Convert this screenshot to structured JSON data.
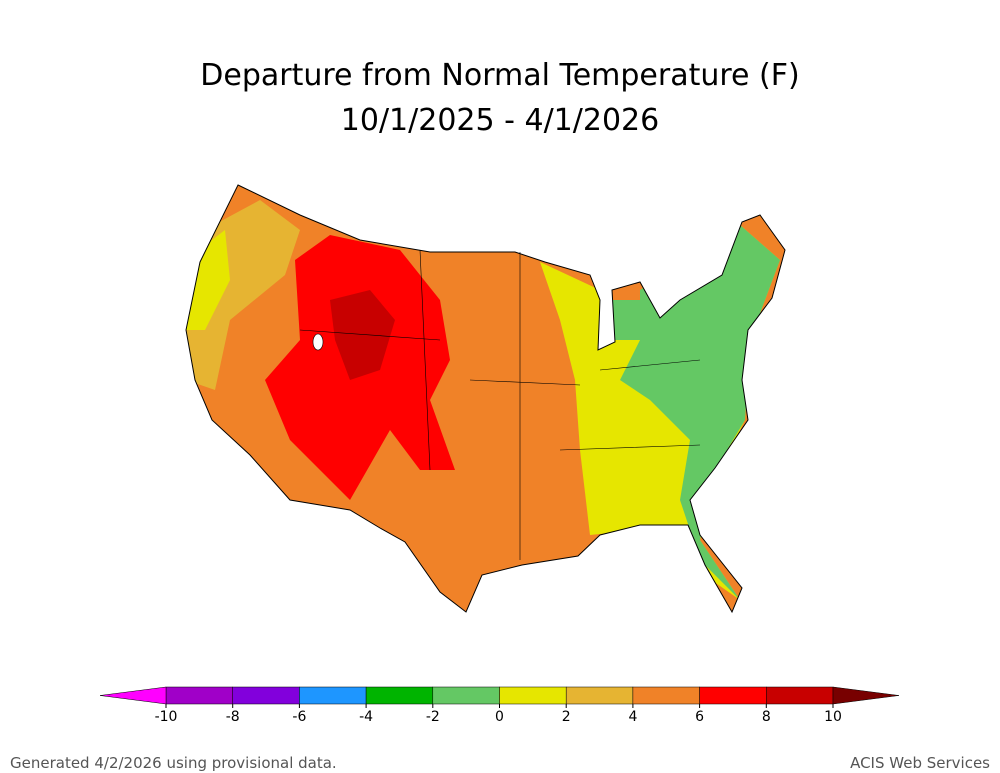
{
  "title": "Departure from Normal Temperature (F)",
  "subtitle": "10/1/2025 - 4/1/2026",
  "colorbar": {
    "ticks": [
      -10,
      -8,
      -6,
      -4,
      -2,
      0,
      2,
      4,
      6,
      8,
      10
    ],
    "colors": [
      "#a000c8",
      "#8200dc",
      "#1e96ff",
      "#00b400",
      "#64c864",
      "#e6e600",
      "#e6b432",
      "#f08228",
      "#ff0000",
      "#c80000"
    ],
    "under_color": "#ff00ff",
    "over_color": "#780000"
  },
  "footer": {
    "left": "Generated 4/2/2026 using provisional data.",
    "right": "ACIS Web Services"
  }
}
